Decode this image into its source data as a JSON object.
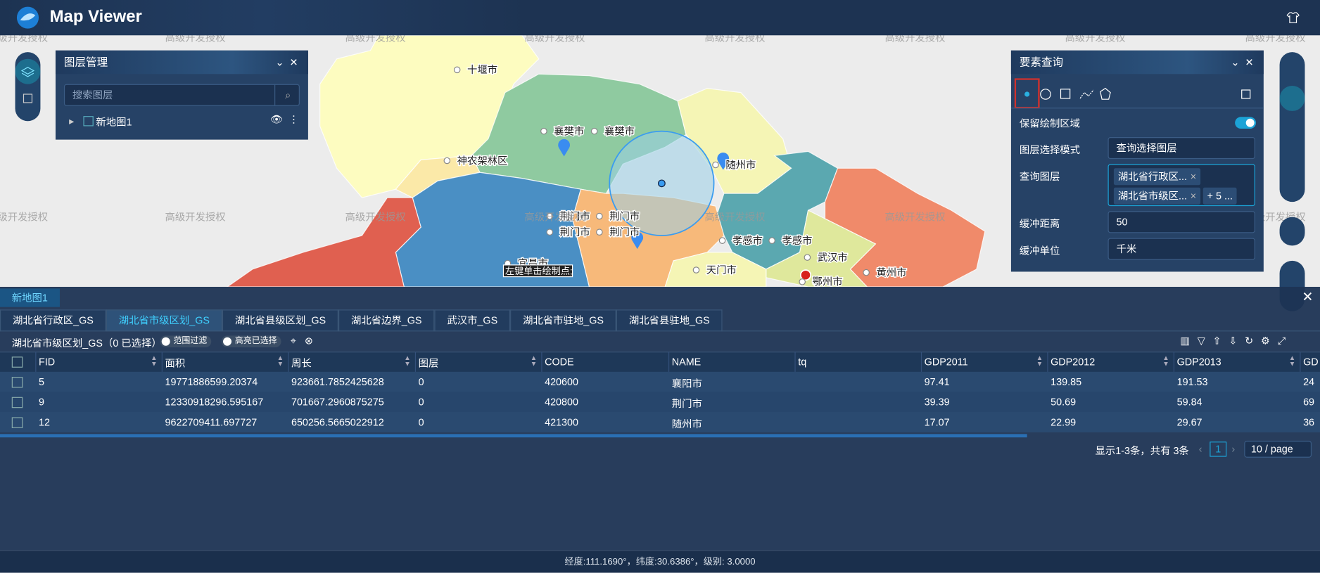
{
  "header": {
    "title": "Map Viewer"
  },
  "map": {
    "watermark": "高级开发授权",
    "labels": [
      "十堰市",
      "襄樊市",
      "襄樊市",
      "神农架林区",
      "随州市",
      "荆门市",
      "荆门市",
      "荆门市",
      "荆门市",
      "孝感市",
      "孝感市",
      "武汉市",
      "天门市",
      "鄂州市",
      "黄州市",
      "宜昌市"
    ],
    "tooltip": "左键单击绘制点;"
  },
  "layer_panel": {
    "title": "图层管理",
    "search_placeholder": "搜索图层",
    "layers": [
      "新地图1"
    ]
  },
  "query_panel": {
    "title": "要素查询",
    "keep_area": "保留绘制区域",
    "mode_label": "图层选择模式",
    "mode_value": "查询选择图层",
    "layers_label": "查询图层",
    "layer_tags": [
      "湖北省行政区...",
      "湖北省市级区...",
      "+ 5 ..."
    ],
    "buffer_label": "缓冲距离",
    "buffer_value": "50",
    "unit_label": "缓冲单位",
    "unit_value": "千米"
  },
  "attribute_panel": {
    "map_tab": "新地图1",
    "layer_tabs": [
      "湖北省行政区_GS",
      "湖北省市级区划_GS",
      "湖北省县级区划_GS",
      "湖北省边界_GS",
      "武汉市_GS",
      "湖北省市驻地_GS",
      "湖北省县驻地_GS"
    ],
    "active_tab": 1,
    "summary": "湖北省市级区划_GS（0 已选择）",
    "filters": [
      "范围过滤",
      "高亮已选择"
    ],
    "table": {
      "columns": [
        "FID",
        "面积",
        "周长",
        "图层",
        "CODE",
        "NAME",
        "tq",
        "GDP2011",
        "GDP2012",
        "GDP2013",
        "GD"
      ],
      "rows": [
        [
          "5",
          "19771886599.20374",
          "923661.7852425628",
          "0",
          "420600",
          "襄阳市",
          null,
          "97.41",
          "139.85",
          "191.53",
          "24"
        ],
        [
          "9",
          "12330918296.595167",
          "701667.2960875275",
          "0",
          "420800",
          "荆门市",
          null,
          "39.39",
          "50.69",
          "59.84",
          "69"
        ],
        [
          "12",
          "9622709411.697727",
          "650256.5665022912",
          "0",
          "421300",
          "随州市",
          null,
          "17.07",
          "22.99",
          "29.67",
          "36"
        ]
      ]
    },
    "pagination": {
      "summary": "显示1-3条，共有 3条",
      "page": "1",
      "page_size": "10 / page"
    }
  },
  "status_bar": "经度:111.1690°，纬度:30.6386°，级别: 3.0000"
}
